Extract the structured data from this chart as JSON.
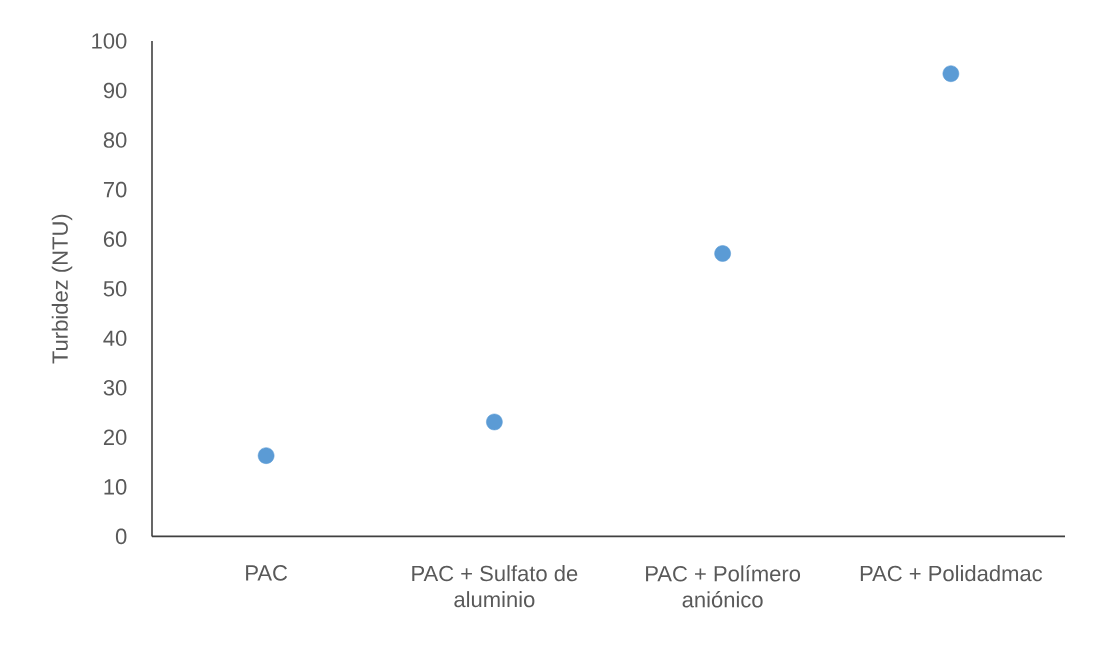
{
  "chart_data": {
    "type": "scatter",
    "ylabel": "Turbidez (NTU)",
    "categories": [
      "PAC",
      "PAC + Sulfato de aluminio",
      "PAC + Polímero aniónico",
      "PAC + Polidadmac"
    ],
    "values": [
      16.3,
      23.1,
      57.1,
      93.4
    ],
    "color": "#5b9bd5",
    "marker": "circle",
    "ylim": [
      0,
      100
    ],
    "yticks": [
      0,
      10,
      20,
      30,
      40,
      50,
      60,
      70,
      80,
      90,
      100
    ]
  }
}
